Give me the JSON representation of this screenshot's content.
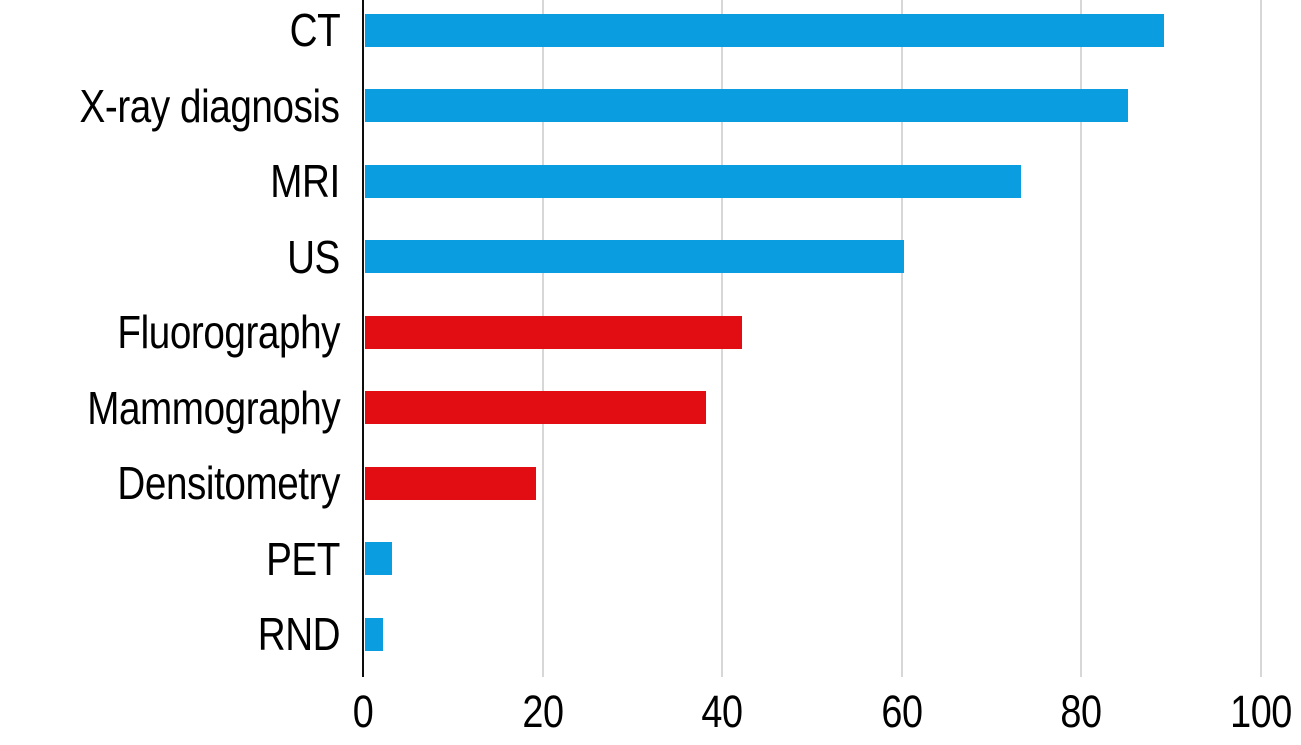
{
  "chart_data": {
    "type": "bar",
    "orientation": "horizontal",
    "title": "",
    "xlabel": "",
    "ylabel": "",
    "categories": [
      "CT",
      "X-ray diagnosis",
      "MRI",
      "US",
      "Fluorography",
      "Mammography",
      "Densitometry",
      "PET",
      "RND"
    ],
    "values": [
      89,
      85,
      73,
      60,
      42,
      38,
      19,
      3,
      2
    ],
    "bar_colors": [
      "#0a9de0",
      "#0a9de0",
      "#0a9de0",
      "#0a9de0",
      "#e20d13",
      "#e20d13",
      "#e20d13",
      "#0a9de0",
      "#0a9de0"
    ],
    "xlim": [
      0,
      100
    ],
    "x_ticks": [
      0,
      20,
      40,
      60,
      80,
      100
    ],
    "grid": "vertical-gridlines",
    "legend": "none",
    "colors": {
      "blue_series": "#0a9de0",
      "red_series": "#e20d13",
      "gridline": "#d7d7d7",
      "axis_line": "#0d0d0d",
      "text": "#000000",
      "background": "#ffffff"
    }
  }
}
